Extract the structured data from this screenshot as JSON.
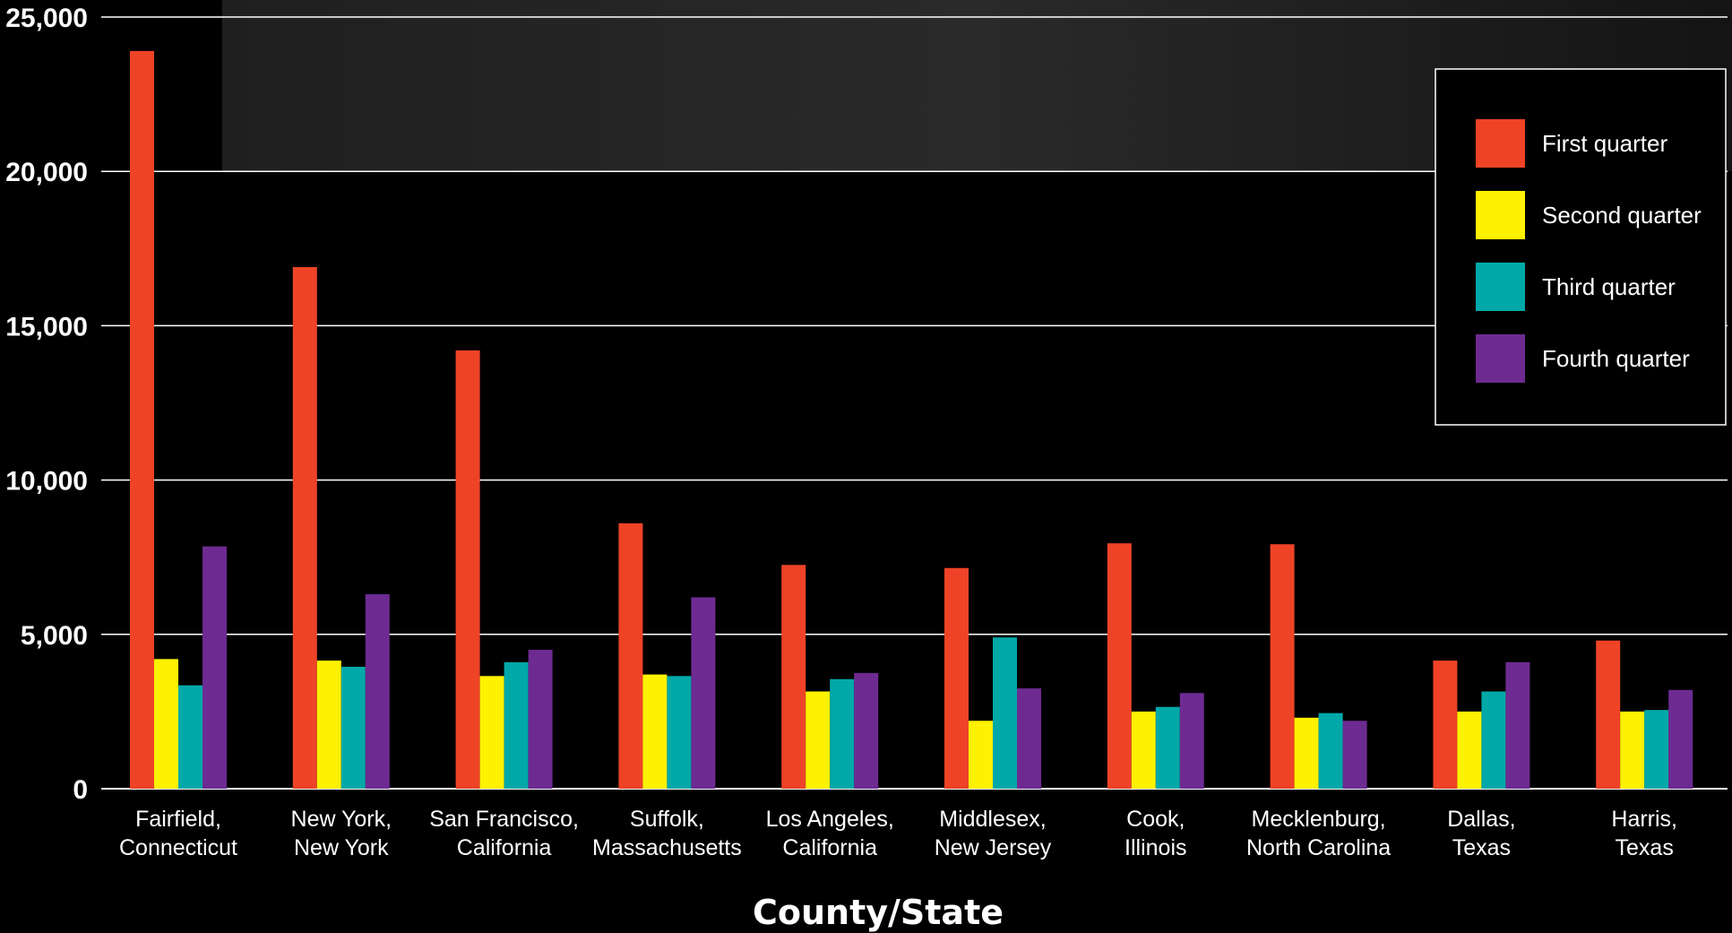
{
  "chart_data": {
    "type": "bar",
    "title": "",
    "xlabel": "County/State",
    "ylabel": "",
    "ylim": [
      0,
      25000
    ],
    "yticks": [
      0,
      5000,
      10000,
      15000,
      20000,
      25000
    ],
    "ytick_labels": [
      "0",
      "5,000",
      "10,000",
      "15,000",
      "20,000",
      "25,000"
    ],
    "grid": true,
    "legend_position": "top-right",
    "categories": [
      [
        "Fairfield,",
        "Connecticut"
      ],
      [
        "New York,",
        "New York"
      ],
      [
        "San Francisco,",
        "California"
      ],
      [
        "Suffolk,",
        "Massachusetts"
      ],
      [
        "Los Angeles,",
        "California"
      ],
      [
        "Middlesex,",
        "New Jersey"
      ],
      [
        "Cook,",
        "Illinois"
      ],
      [
        "Mecklenburg,",
        "North Carolina"
      ],
      [
        "Dallas,",
        "Texas"
      ],
      [
        "Harris,",
        "Texas"
      ]
    ],
    "series": [
      {
        "name": "First quarter",
        "color": "#ee4327",
        "values": [
          23900,
          16900,
          14200,
          8600,
          7250,
          7150,
          7950,
          7920,
          4150,
          4800
        ]
      },
      {
        "name": "Second quarter",
        "color": "#fff200",
        "values": [
          4200,
          4150,
          3650,
          3700,
          3150,
          2200,
          2500,
          2300,
          2500,
          2500
        ]
      },
      {
        "name": "Third quarter",
        "color": "#00a9a8",
        "values": [
          3350,
          3950,
          4100,
          3650,
          3550,
          4900,
          2650,
          2450,
          3150,
          2550
        ]
      },
      {
        "name": "Fourth quarter",
        "color": "#6d2b92",
        "values": [
          7850,
          6300,
          4500,
          6200,
          3750,
          3250,
          3100,
          2200,
          4100,
          3200
        ]
      }
    ]
  }
}
